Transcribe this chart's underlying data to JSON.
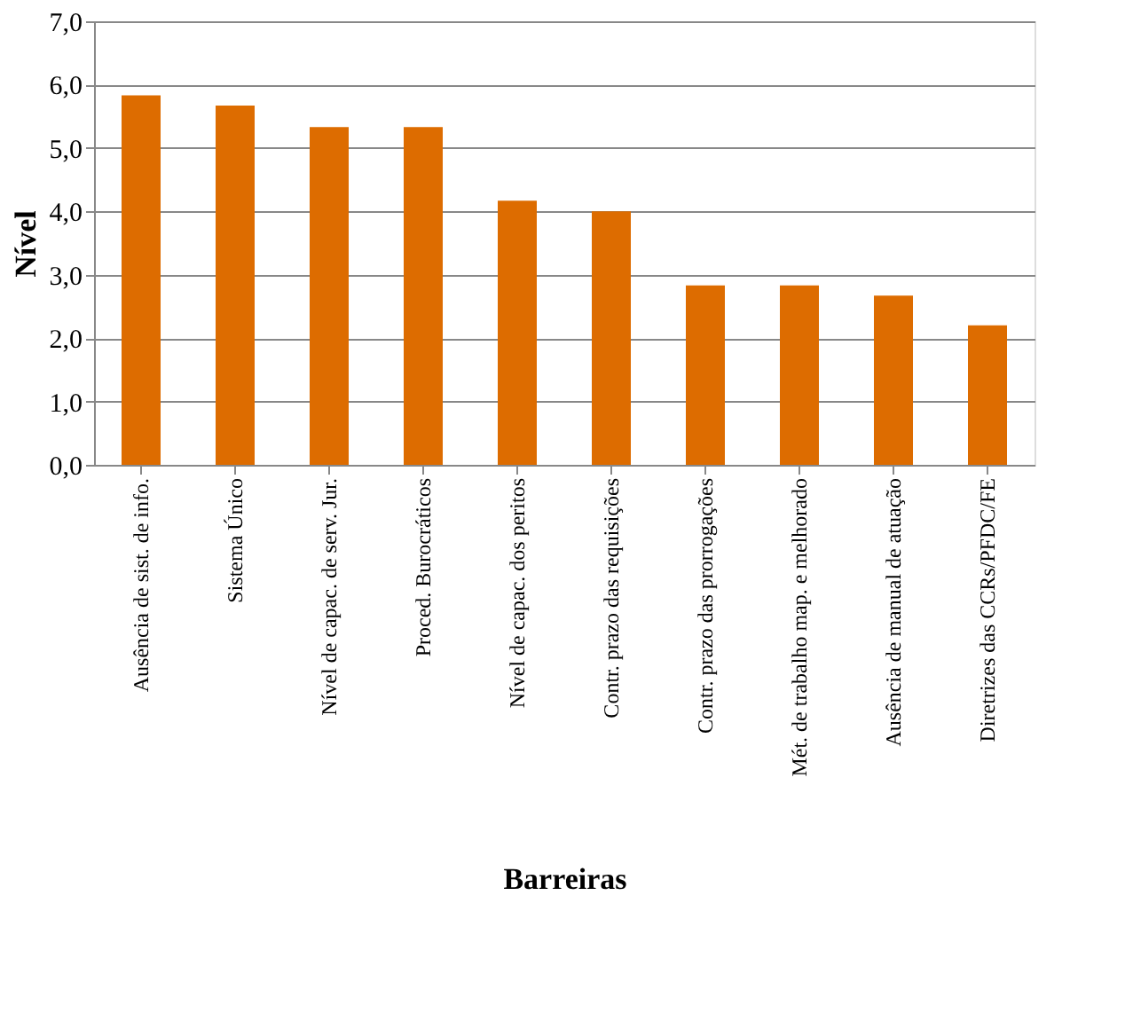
{
  "chart_data": {
    "type": "bar",
    "xlabel": "Barreiras",
    "ylabel": "Nível",
    "categories": [
      "Ausência de sist. de info.",
      "Sistema Único",
      "Nível de capac. de serv. Jur.",
      "Proced. Burocráticos",
      "Nível de capac. dos peritos",
      "Contr. prazo das requisições",
      "Contr. prazo das prorrogações",
      "Mét. de trabalho map. e melhorado",
      "Ausência de manual de atuação",
      "Diretrizes das CCRs/PFDC/FE"
    ],
    "values": [
      5.83,
      5.67,
      5.33,
      5.33,
      4.17,
      4.0,
      2.83,
      2.83,
      2.67,
      2.2
    ],
    "color": "#dd6c00",
    "ylim": [
      0,
      7
    ],
    "yticks": [
      {
        "value": 0,
        "label": "0,0"
      },
      {
        "value": 1,
        "label": "1,0"
      },
      {
        "value": 2,
        "label": "2,0"
      },
      {
        "value": 3,
        "label": "3,0"
      },
      {
        "value": 4,
        "label": "4,0"
      },
      {
        "value": 5,
        "label": "5,0"
      },
      {
        "value": 6,
        "label": "6,0"
      },
      {
        "value": 7,
        "label": "7,0"
      }
    ],
    "grid": "y"
  }
}
